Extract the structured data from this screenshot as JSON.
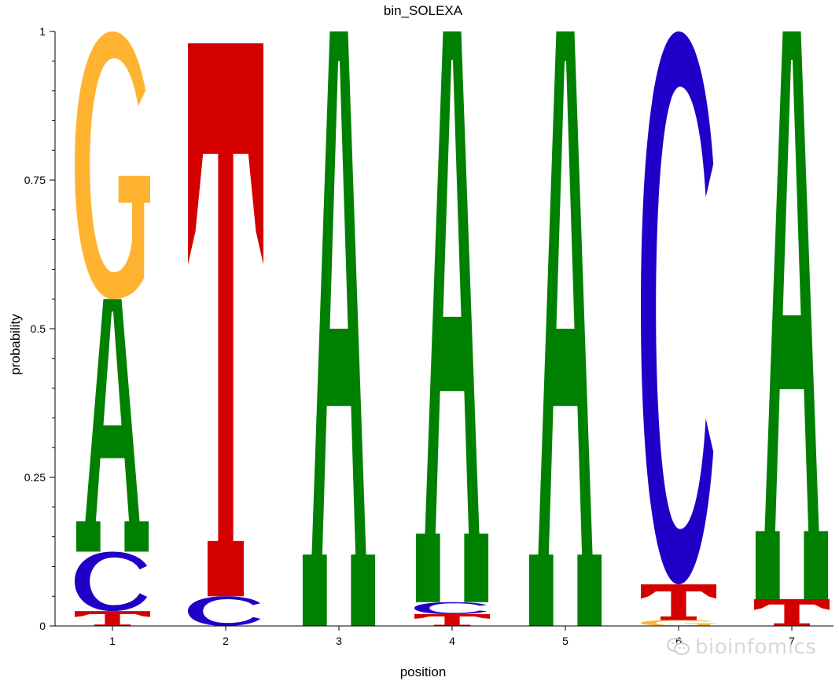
{
  "chart_data": {
    "type": "sequence-logo",
    "title": "bin_SOLEXA",
    "xlabel": "position",
    "ylabel": "probability",
    "ylim": [
      0,
      1
    ],
    "yticks": [
      0,
      0.25,
      0.5,
      0.75,
      1
    ],
    "ytick_labels": [
      "0",
      "0.25",
      "0.5",
      "0.75",
      "1"
    ],
    "positions": [
      "1",
      "2",
      "3",
      "4",
      "5",
      "6",
      "7"
    ],
    "colors": {
      "A": "#008000",
      "C": "#2000c8",
      "G": "#ffb330",
      "T": "#d40000"
    },
    "stacks": [
      [
        {
          "letter": "T",
          "p": 0.025
        },
        {
          "letter": "C",
          "p": 0.1
        },
        {
          "letter": "A",
          "p": 0.425
        },
        {
          "letter": "G",
          "p": 0.45
        }
      ],
      [
        {
          "letter": "C",
          "p": 0.05
        },
        {
          "letter": "T",
          "p": 0.93
        }
      ],
      [
        {
          "letter": "A",
          "p": 1.0
        }
      ],
      [
        {
          "letter": "T",
          "p": 0.02
        },
        {
          "letter": "C",
          "p": 0.02
        },
        {
          "letter": "A",
          "p": 0.96
        }
      ],
      [
        {
          "letter": "A",
          "p": 1.0
        }
      ],
      [
        {
          "letter": "G",
          "p": 0.01
        },
        {
          "letter": "T",
          "p": 0.06
        },
        {
          "letter": "C",
          "p": 0.93
        }
      ],
      [
        {
          "letter": "T",
          "p": 0.045
        },
        {
          "letter": "A",
          "p": 0.955
        }
      ]
    ]
  },
  "watermark": {
    "text": "bioinfomics",
    "icon": "wechat-icon"
  }
}
